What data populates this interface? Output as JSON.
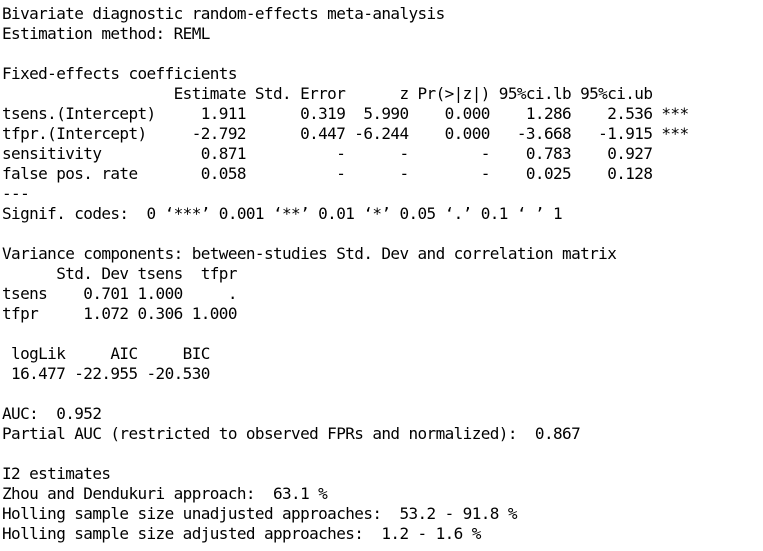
{
  "console": {
    "lines": [
      "Bivariate diagnostic random-effects meta-analysis",
      "Estimation method: REML",
      "",
      "Fixed-effects coefficients",
      "                   Estimate Std. Error      z Pr(>|z|) 95%ci.lb 95%ci.ub    ",
      "tsens.(Intercept)     1.911      0.319  5.990    0.000    1.286    2.536 ***",
      "tfpr.(Intercept)     -2.792      0.447 -6.244    0.000   -3.668   -1.915 ***",
      "sensitivity           0.871          -      -        -    0.783    0.927    ",
      "false pos. rate       0.058          -      -        -    0.025    0.128    ",
      "---",
      "Signif. codes:  0 ‘***’ 0.001 ‘**’ 0.01 ‘*’ 0.05 ‘.’ 0.1 ‘ ’ 1",
      "",
      "Variance components: between-studies Std. Dev and correlation matrix",
      "      Std. Dev tsens  tfpr",
      "tsens    0.701 1.000     .",
      "tfpr     1.072 0.306 1.000",
      "",
      " logLik     AIC     BIC",
      " 16.477 -22.955 -20.530",
      "",
      "AUC:  0.952",
      "Partial AUC (restricted to observed FPRs and normalized):  0.867",
      "",
      "I2 estimates",
      "Zhou and Dendukuri approach:  63.1 %",
      "Holling sample size unadjusted approaches:  53.2 - 91.8 %",
      "Holling sample size adjusted approaches:  1.2 - 1.6 %"
    ]
  }
}
